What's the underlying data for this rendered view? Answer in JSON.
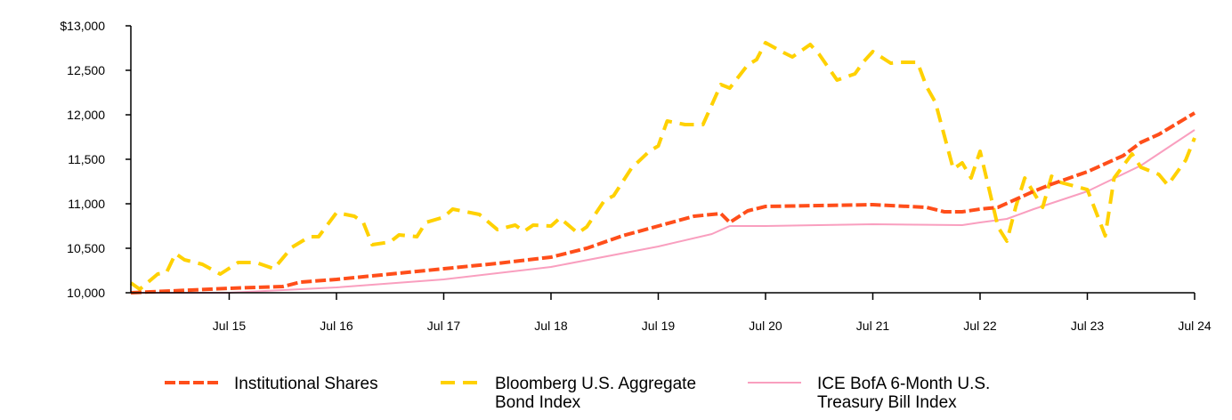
{
  "chart_data": {
    "type": "line",
    "title": "",
    "xlabel": "",
    "ylabel": "",
    "xlim": [
      "2014-08",
      "2024-07"
    ],
    "ylim": [
      10000,
      13000
    ],
    "grid": false,
    "legend_position": "bottom",
    "x_ticks": [
      {
        "date": "2015-07",
        "label": "Jul 15"
      },
      {
        "date": "2016-07",
        "label": "Jul 16"
      },
      {
        "date": "2017-07",
        "label": "Jul 17"
      },
      {
        "date": "2018-07",
        "label": "Jul 18"
      },
      {
        "date": "2019-07",
        "label": "Jul 19"
      },
      {
        "date": "2020-07",
        "label": "Jul 20"
      },
      {
        "date": "2021-07",
        "label": "Jul 21"
      },
      {
        "date": "2022-07",
        "label": "Jul 22"
      },
      {
        "date": "2023-07",
        "label": "Jul 23"
      },
      {
        "date": "2024-07",
        "label": "Jul 24"
      }
    ],
    "y_ticks": [
      {
        "value": 10000,
        "label": "10,000"
      },
      {
        "value": 10500,
        "label": "10,500"
      },
      {
        "value": 11000,
        "label": "11,000"
      },
      {
        "value": 11500,
        "label": "11,500"
      },
      {
        "value": 12000,
        "label": "12,000"
      },
      {
        "value": 12500,
        "label": "12,500"
      },
      {
        "value": 13000,
        "label": "$13,000"
      }
    ],
    "series": [
      {
        "name": "Institutional Shares",
        "color": "#FF4E1A",
        "style": "dashed-thick",
        "points": [
          [
            "2014-08",
            10000
          ],
          [
            "2015-07",
            10050
          ],
          [
            "2016-01",
            10070
          ],
          [
            "2016-03",
            10120
          ],
          [
            "2016-07",
            10150
          ],
          [
            "2017-01",
            10210
          ],
          [
            "2017-07",
            10270
          ],
          [
            "2018-01",
            10330
          ],
          [
            "2018-07",
            10400
          ],
          [
            "2018-11",
            10500
          ],
          [
            "2019-03",
            10640
          ],
          [
            "2019-07",
            10750
          ],
          [
            "2019-11",
            10860
          ],
          [
            "2020-02",
            10890
          ],
          [
            "2020-03",
            10790
          ],
          [
            "2020-05",
            10920
          ],
          [
            "2020-07",
            10970
          ],
          [
            "2021-01",
            10980
          ],
          [
            "2021-07",
            10990
          ],
          [
            "2022-01",
            10960
          ],
          [
            "2022-03",
            10910
          ],
          [
            "2022-05",
            10910
          ],
          [
            "2022-07",
            10940
          ],
          [
            "2022-09",
            10960
          ],
          [
            "2023-01",
            11140
          ],
          [
            "2023-03",
            11220
          ],
          [
            "2023-07",
            11360
          ],
          [
            "2023-11",
            11540
          ],
          [
            "2024-01",
            11690
          ],
          [
            "2024-03",
            11780
          ],
          [
            "2024-07",
            12020
          ]
        ]
      },
      {
        "name": "Bloomberg U.S. Aggregate Bond Index",
        "legend_lines": [
          "Bloomberg U.S. Aggregate",
          "Bond Index"
        ],
        "color": "#FFD100",
        "style": "dashed-long",
        "points": [
          [
            "2014-08",
            10110
          ],
          [
            "2014-09",
            10040
          ],
          [
            "2014-11",
            10210
          ],
          [
            "2014-12",
            10230
          ],
          [
            "2015-01",
            10440
          ],
          [
            "2015-02",
            10370
          ],
          [
            "2015-04",
            10320
          ],
          [
            "2015-06",
            10210
          ],
          [
            "2015-08",
            10340
          ],
          [
            "2015-10",
            10340
          ],
          [
            "2015-12",
            10270
          ],
          [
            "2016-02",
            10510
          ],
          [
            "2016-04",
            10630
          ],
          [
            "2016-05",
            10630
          ],
          [
            "2016-07",
            10900
          ],
          [
            "2016-09",
            10860
          ],
          [
            "2016-10",
            10790
          ],
          [
            "2016-11",
            10540
          ],
          [
            "2017-01",
            10570
          ],
          [
            "2017-02",
            10650
          ],
          [
            "2017-04",
            10630
          ],
          [
            "2017-05",
            10790
          ],
          [
            "2017-07",
            10850
          ],
          [
            "2017-08",
            10940
          ],
          [
            "2017-11",
            10880
          ],
          [
            "2018-01",
            10710
          ],
          [
            "2018-03",
            10760
          ],
          [
            "2018-04",
            10690
          ],
          [
            "2018-05",
            10760
          ],
          [
            "2018-07",
            10750
          ],
          [
            "2018-08",
            10840
          ],
          [
            "2018-10",
            10670
          ],
          [
            "2018-11",
            10740
          ],
          [
            "2019-01",
            11040
          ],
          [
            "2019-02",
            11090
          ],
          [
            "2019-04",
            11400
          ],
          [
            "2019-06",
            11590
          ],
          [
            "2019-07",
            11650
          ],
          [
            "2019-08",
            11930
          ],
          [
            "2019-10",
            11890
          ],
          [
            "2019-12",
            11890
          ],
          [
            "2020-02",
            12340
          ],
          [
            "2020-03",
            12300
          ],
          [
            "2020-05",
            12560
          ],
          [
            "2020-06",
            12620
          ],
          [
            "2020-07",
            12810
          ],
          [
            "2020-09",
            12700
          ],
          [
            "2020-10",
            12650
          ],
          [
            "2020-12",
            12790
          ],
          [
            "2021-01",
            12680
          ],
          [
            "2021-03",
            12390
          ],
          [
            "2021-05",
            12460
          ],
          [
            "2021-06",
            12600
          ],
          [
            "2021-07",
            12710
          ],
          [
            "2021-09",
            12580
          ],
          [
            "2021-10",
            12590
          ],
          [
            "2021-12",
            12590
          ],
          [
            "2022-01",
            12320
          ],
          [
            "2022-02",
            12140
          ],
          [
            "2022-04",
            11390
          ],
          [
            "2022-05",
            11460
          ],
          [
            "2022-06",
            11290
          ],
          [
            "2022-07",
            11590
          ],
          [
            "2022-08",
            11170
          ],
          [
            "2022-09",
            10740
          ],
          [
            "2022-10",
            10580
          ],
          [
            "2022-11",
            10970
          ],
          [
            "2022-12",
            11290
          ],
          [
            "2023-02",
            10960
          ],
          [
            "2023-03",
            11310
          ],
          [
            "2023-04",
            11240
          ],
          [
            "2023-07",
            11160
          ],
          [
            "2023-09",
            10640
          ],
          [
            "2023-10",
            11290
          ],
          [
            "2023-12",
            11560
          ],
          [
            "2024-01",
            11410
          ],
          [
            "2024-03",
            11330
          ],
          [
            "2024-04",
            11210
          ],
          [
            "2024-06",
            11490
          ],
          [
            "2024-07",
            11740
          ]
        ]
      },
      {
        "name": "ICE BofA 6-Month U.S. Treasury Bill Index",
        "legend_lines": [
          "ICE BofA 6-Month U.S.",
          "Treasury Bill Index"
        ],
        "color": "#F99FBF",
        "style": "solid-thin",
        "points": [
          [
            "2014-08",
            10000
          ],
          [
            "2015-07",
            10000
          ],
          [
            "2016-07",
            10060
          ],
          [
            "2017-07",
            10150
          ],
          [
            "2018-07",
            10290
          ],
          [
            "2019-07",
            10520
          ],
          [
            "2020-01",
            10660
          ],
          [
            "2020-03",
            10750
          ],
          [
            "2020-07",
            10750
          ],
          [
            "2021-07",
            10770
          ],
          [
            "2022-05",
            10760
          ],
          [
            "2022-07",
            10790
          ],
          [
            "2022-10",
            10830
          ],
          [
            "2023-01",
            10940
          ],
          [
            "2023-07",
            11140
          ],
          [
            "2024-01",
            11430
          ],
          [
            "2024-07",
            11830
          ]
        ]
      }
    ]
  }
}
